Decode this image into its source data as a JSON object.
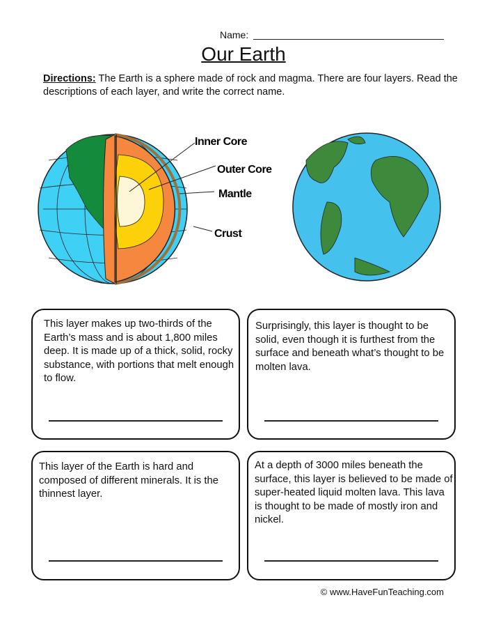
{
  "header": {
    "name_label": "Name:",
    "title": "Our Earth"
  },
  "directions": {
    "label": "Directions:",
    "text": " The Earth is a sphere made of rock and magma. There are four layers. Read the descriptions of each layer, and write the correct name."
  },
  "diagram": {
    "labels": [
      "Inner Core",
      "Outer Core",
      "Mantle",
      "Crust"
    ]
  },
  "boxes": [
    {
      "text": "This layer makes up two-thirds of the Earth’s mass and is about 1,800 miles deep.  It is made up of a thick, solid, rocky substance, with portions that melt enough to flow."
    },
    {
      "text": "Surprisingly, this layer is thought to be solid, even though it is furthest from the surface and beneath what’s thought to be molten lava."
    },
    {
      "text": "This layer of the Earth is hard and composed of different minerals.  It is the thinnest layer."
    },
    {
      "text": "At a depth of 3000 miles beneath the surface, this layer is believed to be made of super-heated liquid molten lava.  This lava is thought to be made of mostly iron and nickel."
    }
  ],
  "footer": "© www.HaveFunTeaching.com"
}
